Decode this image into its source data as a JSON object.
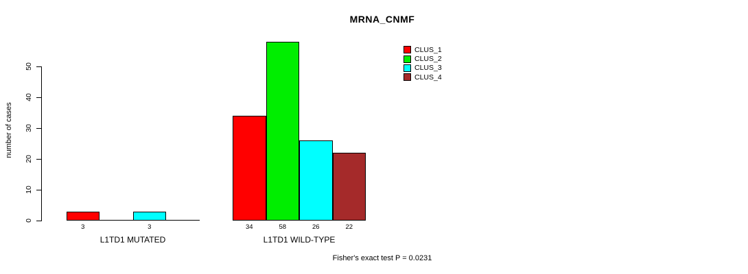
{
  "chart_data": {
    "type": "bar",
    "title": "MRNA_CNMF",
    "ylabel": "number of cases",
    "xlabel": "",
    "ylim": [
      0,
      58
    ],
    "yticks": [
      0,
      10,
      20,
      30,
      40,
      50
    ],
    "grid": false,
    "legend_position": "top-right-inside",
    "value_labels": "shown under each nonzero bar",
    "categories": [
      "L1TD1 MUTATED",
      "L1TD1 WILD-TYPE"
    ],
    "series": [
      {
        "name": "CLUS_1",
        "color": "#ff0000",
        "values": [
          3,
          34
        ]
      },
      {
        "name": "CLUS_2",
        "color": "#00ee00",
        "values": [
          0,
          58
        ]
      },
      {
        "name": "CLUS_3",
        "color": "#00ffff",
        "values": [
          3,
          26
        ]
      },
      {
        "name": "CLUS_4",
        "color": "#a52a2a",
        "values": [
          0,
          22
        ]
      }
    ],
    "annotation": "Fisher's exact test P = 0.0231"
  }
}
